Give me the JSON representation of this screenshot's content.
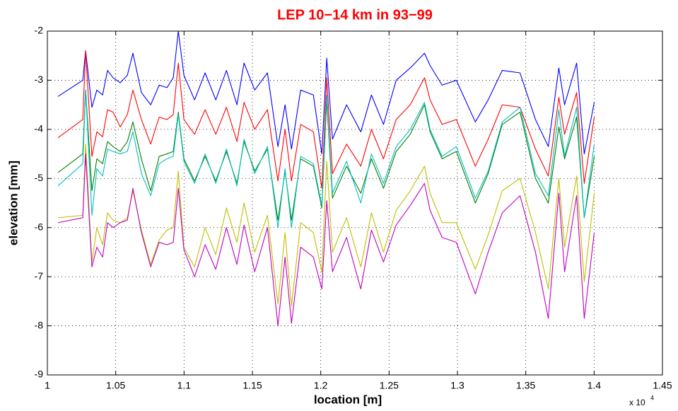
{
  "chart_data": {
    "type": "line",
    "title": "LEP 10−14 km in 93−99",
    "xlabel": "location [m]",
    "ylabel": "elevation [mm]",
    "x_multiplier": {
      "text": "x 10",
      "exponent": "4"
    },
    "xlim": [
      1,
      1.45
    ],
    "xticks": [
      1,
      1.05,
      1.1,
      1.15,
      1.2,
      1.25,
      1.3,
      1.35,
      1.4,
      1.45
    ],
    "ylim": [
      -9,
      -2
    ],
    "yticks": [
      -9,
      -8,
      -7,
      -6,
      -5,
      -4,
      -3,
      -2
    ],
    "grid": true,
    "x": [
      1.0078,
      1.0259,
      1.028,
      1.0326,
      1.0362,
      1.0404,
      1.044,
      1.0481,
      1.0533,
      1.0585,
      1.0626,
      1.0688,
      1.0756,
      1.0818,
      1.0875,
      1.0921,
      1.0958,
      1.0999,
      1.1077,
      1.1154,
      1.1232,
      1.131,
      1.1387,
      1.1439,
      1.1517,
      1.161,
      1.1687,
      1.1739,
      1.1786,
      1.1853,
      1.1946,
      1.2008,
      1.2044,
      1.2086,
      1.2189,
      1.2293,
      1.2371,
      1.2459,
      1.2552,
      1.2655,
      1.2759,
      1.28,
      1.2888,
      1.2992,
      1.3131,
      1.3225,
      1.3328,
      1.3458,
      1.3571,
      1.3665,
      1.3742,
      1.3784,
      1.3872,
      1.3928,
      1.4001
    ],
    "series": [
      {
        "color": "#0000ff",
        "values": [
          -3.33,
          -3.0,
          -2.4,
          -3.55,
          -3.2,
          -3.3,
          -2.8,
          -2.95,
          -3.05,
          -2.9,
          -2.45,
          -3.25,
          -3.5,
          -3.1,
          -3.15,
          -2.95,
          -2.0,
          -2.9,
          -3.4,
          -2.85,
          -3.4,
          -2.8,
          -3.5,
          -2.65,
          -3.2,
          -2.85,
          -4.35,
          -3.5,
          -4.4,
          -3.2,
          -3.3,
          -4.5,
          -2.55,
          -4.2,
          -3.5,
          -4.05,
          -3.3,
          -3.9,
          -3.0,
          -2.75,
          -2.45,
          -2.7,
          -3.1,
          -3.0,
          -3.85,
          -3.4,
          -2.8,
          -2.85,
          -3.8,
          -4.35,
          -2.75,
          -3.5,
          -2.65,
          -4.5,
          -3.45
        ]
      },
      {
        "color": "#ff0000",
        "values": [
          -4.17,
          -3.8,
          -2.4,
          -4.55,
          -4.05,
          -4.15,
          -3.6,
          -3.65,
          -3.95,
          -3.7,
          -3.2,
          -3.8,
          -4.3,
          -3.75,
          -3.8,
          -3.7,
          -2.65,
          -3.8,
          -4.1,
          -3.6,
          -4.1,
          -3.55,
          -4.25,
          -3.45,
          -4.0,
          -3.6,
          -5.05,
          -4.0,
          -5.05,
          -3.9,
          -4.05,
          -5.2,
          -2.95,
          -4.9,
          -4.3,
          -4.75,
          -4.0,
          -4.6,
          -3.8,
          -3.5,
          -2.95,
          -3.4,
          -3.9,
          -3.8,
          -4.75,
          -4.2,
          -3.5,
          -3.55,
          -4.4,
          -4.95,
          -3.35,
          -4.1,
          -3.25,
          -5.1,
          -3.75
        ]
      },
      {
        "color": "#007f00",
        "values": [
          -4.88,
          -4.5,
          -3.2,
          -5.25,
          -4.6,
          -4.7,
          -4.25,
          -4.35,
          -4.45,
          -4.25,
          -3.85,
          -4.6,
          -5.25,
          -4.55,
          -4.5,
          -4.45,
          -3.65,
          -4.6,
          -5.05,
          -4.55,
          -5.05,
          -4.45,
          -5.1,
          -4.25,
          -4.85,
          -4.4,
          -5.85,
          -4.85,
          -5.85,
          -4.6,
          -4.75,
          -5.6,
          -3.4,
          -5.4,
          -4.75,
          -5.3,
          -4.6,
          -5.2,
          -4.45,
          -4.1,
          -3.5,
          -4.05,
          -4.6,
          -4.45,
          -5.5,
          -4.9,
          -3.9,
          -3.65,
          -5.0,
          -5.5,
          -3.95,
          -4.6,
          -3.75,
          -5.8,
          -4.55
        ]
      },
      {
        "color": "#00bfbf",
        "values": [
          -5.15,
          -4.7,
          -3.2,
          -5.75,
          -4.8,
          -4.95,
          -4.4,
          -4.45,
          -4.5,
          -4.45,
          -4.05,
          -4.9,
          -5.35,
          -4.7,
          -4.6,
          -4.55,
          -3.7,
          -4.65,
          -5.1,
          -4.5,
          -5.1,
          -4.4,
          -5.15,
          -4.2,
          -4.9,
          -4.35,
          -6.0,
          -4.8,
          -6.0,
          -4.55,
          -4.7,
          -5.55,
          -3.3,
          -5.3,
          -4.65,
          -5.5,
          -4.5,
          -5.1,
          -4.35,
          -4.0,
          -3.45,
          -4.0,
          -4.55,
          -4.35,
          -5.4,
          -4.85,
          -3.85,
          -3.55,
          -4.9,
          -5.35,
          -3.6,
          -4.55,
          -3.55,
          -5.8,
          -4.3
        ]
      },
      {
        "color": "#bfbf00",
        "values": [
          -5.8,
          -5.75,
          -4.3,
          -6.7,
          -6.0,
          -6.35,
          -5.7,
          -5.85,
          -5.9,
          -5.8,
          -5.25,
          -6.05,
          -6.75,
          -6.25,
          -6.05,
          -6.0,
          -4.85,
          -6.4,
          -6.8,
          -6.0,
          -6.55,
          -5.6,
          -6.3,
          -5.5,
          -6.5,
          -5.75,
          -7.55,
          -6.1,
          -7.6,
          -5.9,
          -6.1,
          -6.9,
          -4.65,
          -6.5,
          -5.8,
          -6.8,
          -5.7,
          -6.5,
          -5.65,
          -5.25,
          -4.75,
          -5.3,
          -5.9,
          -5.9,
          -6.85,
          -6.15,
          -5.25,
          -5.0,
          -6.1,
          -7.25,
          -5.0,
          -6.4,
          -4.95,
          -7.1,
          -5.3
        ]
      },
      {
        "color": "#bf00bf",
        "values": [
          -5.9,
          -5.8,
          -4.5,
          -6.8,
          -6.4,
          -6.6,
          -5.9,
          -6.0,
          -5.9,
          -5.85,
          -5.2,
          -6.1,
          -6.8,
          -6.3,
          -6.35,
          -6.3,
          -5.2,
          -6.45,
          -7.0,
          -6.35,
          -6.85,
          -6.0,
          -6.75,
          -5.95,
          -6.9,
          -6.0,
          -8.0,
          -6.6,
          -7.95,
          -6.4,
          -6.6,
          -7.25,
          -5.45,
          -6.9,
          -6.2,
          -7.25,
          -6.05,
          -6.7,
          -5.95,
          -5.55,
          -5.1,
          -5.65,
          -6.2,
          -6.3,
          -7.35,
          -6.5,
          -5.7,
          -5.35,
          -6.5,
          -7.85,
          -5.3,
          -6.9,
          -5.35,
          -7.85,
          -6.1
        ]
      }
    ]
  }
}
